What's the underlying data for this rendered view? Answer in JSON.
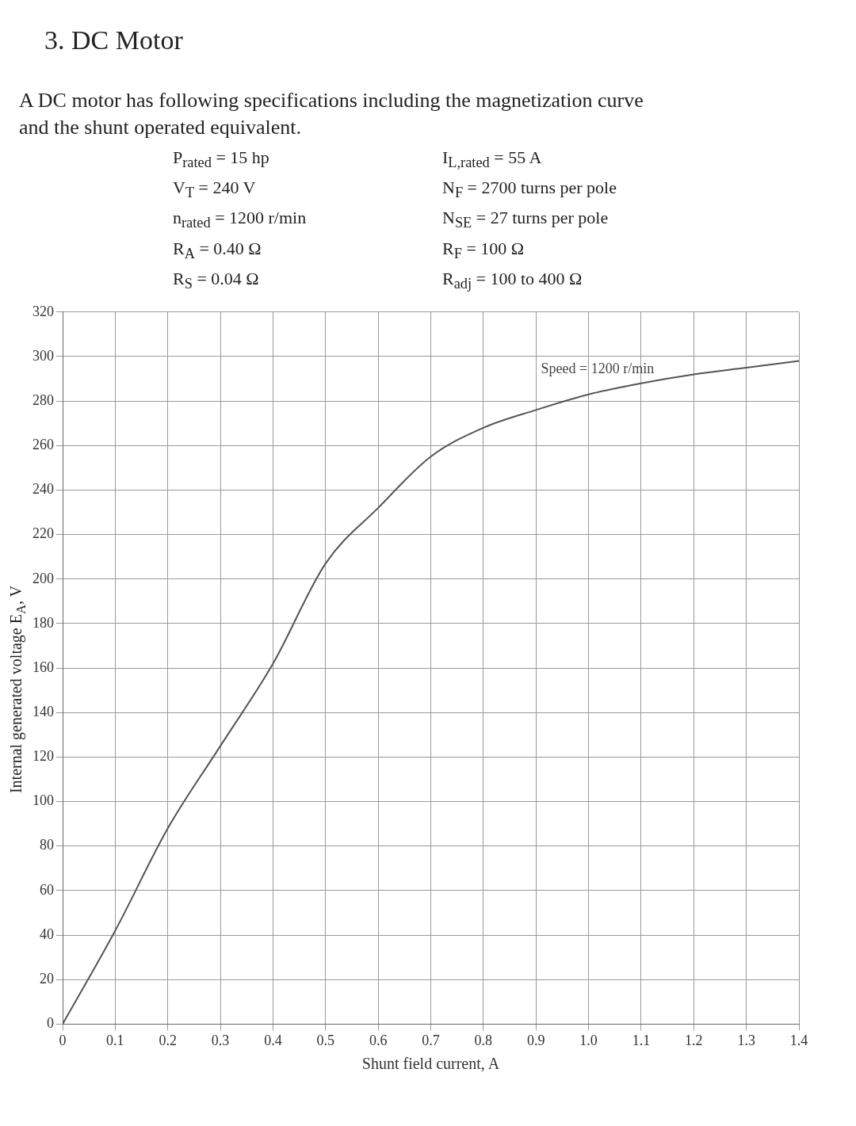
{
  "chart_data": {
    "type": "line",
    "title": "3. DC Motor",
    "subtitle": "A DC motor has following specifications including the magnetization curve and the shunt operated equivalent.",
    "annotations": [
      "P$_{rated}$ = 15 hp",
      "I$_{L,rated}$ = 55 A",
      "V$_{T}$ = 240 V",
      "N$_{F}$ = 2700 turns per pole",
      "n$_{rated}$ = 1200 r/min",
      "N$_{SE}$ = 27 turns per pole",
      "R$_{A}$ = 0.40 Ω",
      "R$_{F}$ = 100 Ω",
      "R$_{S}$ = 0.04 Ω",
      "R$_{adj}$ = 100 to 400 Ω"
    ],
    "xlabel": "Shunt field current, A",
    "ylabel": "Internal generated voltage E$_{A}$, V",
    "series": [
      {
        "name": "Speed = 1200 r/min",
        "color": "#555555",
        "x": [
          0,
          0.1,
          0.2,
          0.3,
          0.4,
          0.5,
          0.6,
          0.7,
          0.8,
          0.9,
          1.0,
          1.1,
          1.2,
          1.3,
          1.4
        ],
        "values": [
          0,
          42,
          88,
          125,
          162,
          207,
          232,
          255,
          268,
          276,
          283,
          288,
          292,
          295,
          298
        ]
      }
    ],
    "xlim": [
      0,
      1.4
    ],
    "ylim": [
      0,
      320
    ],
    "xticks": [
      0,
      0.1,
      0.2,
      0.3,
      0.4,
      0.5,
      0.6,
      0.7,
      0.8,
      0.9,
      {
        "value": 1,
        "label": "1.0"
      },
      1.1,
      1.2,
      1.3,
      1.4
    ],
    "yticks": [
      0,
      20,
      40,
      60,
      80,
      100,
      120,
      140,
      160,
      180,
      200,
      220,
      240,
      260,
      280,
      300,
      320
    ],
    "grid": true,
    "legend": false,
    "marker": "none",
    "line_style": "solid"
  }
}
